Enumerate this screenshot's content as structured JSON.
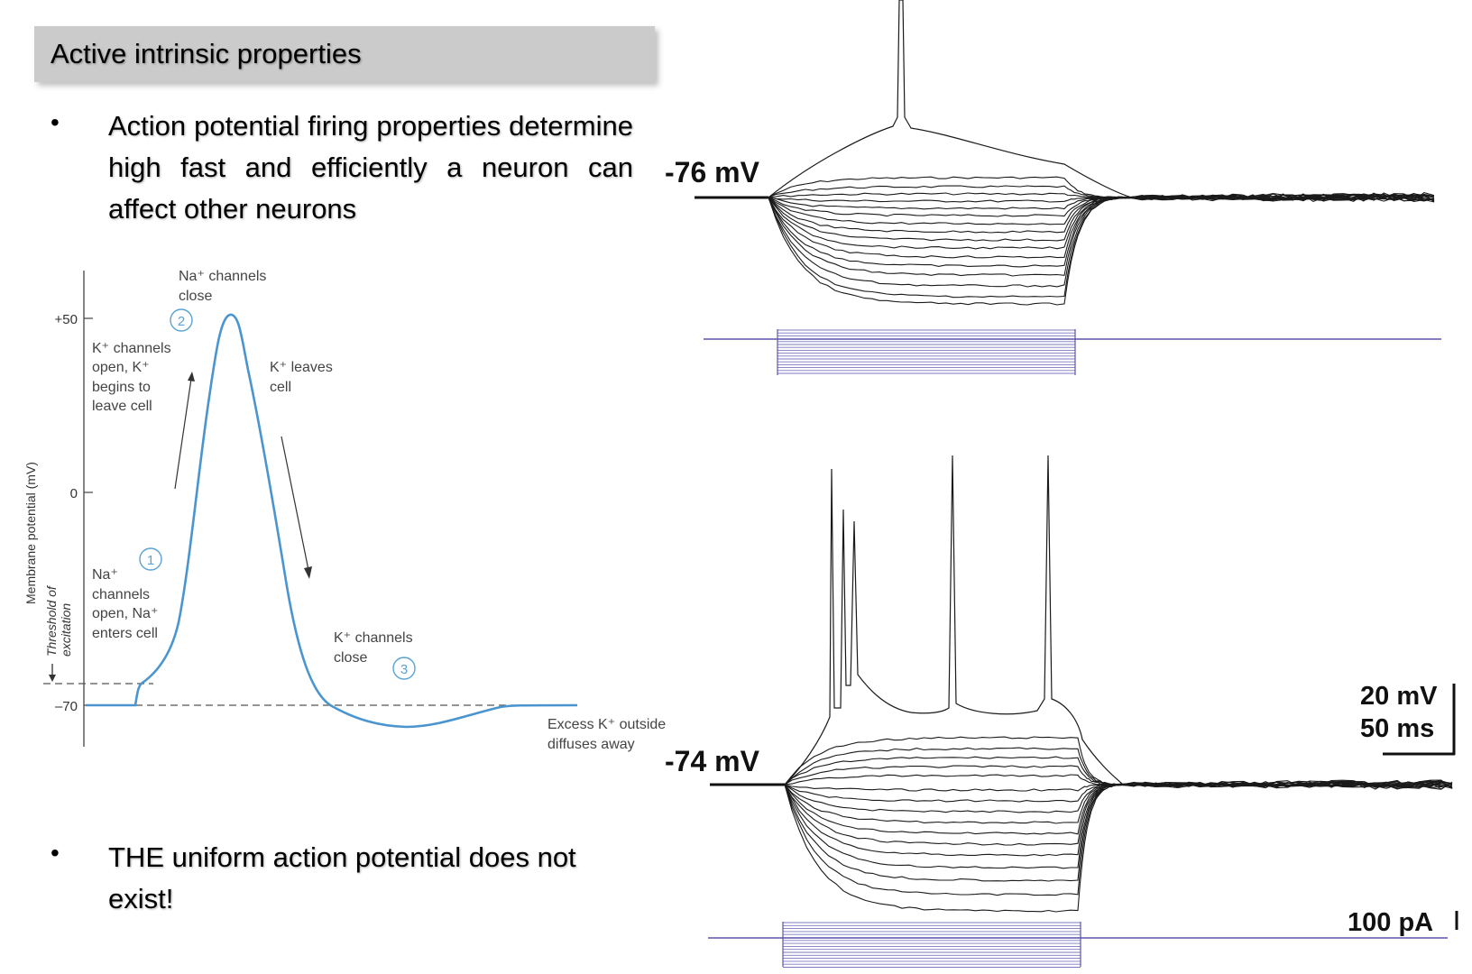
{
  "slide": {
    "title": "Active intrinsic properties",
    "bullets": [
      "Action potential firing properties determine high fast and efficiently a neuron can affect other neurons",
      "THE uniform action potential does not exist!"
    ]
  },
  "ap_diagram": {
    "ylabel": "Membrane potential (mV)",
    "threshold_label_1": "Threshold of",
    "threshold_label_2": "excitation",
    "ticks": [
      "+50",
      "0",
      "–70"
    ],
    "step1": "1",
    "step2": "2",
    "step3": "3",
    "ann_na_close_1": "Na⁺ channels",
    "ann_na_close_2": "close",
    "ann_k_open_1": "K⁺ channels",
    "ann_k_open_2": "open, K⁺",
    "ann_k_open_3": "begins to",
    "ann_k_open_4": "leave cell",
    "ann_k_leaves_1": "K⁺ leaves",
    "ann_k_leaves_2": "cell",
    "ann_na_open_1": "Na⁺",
    "ann_na_open_2": "channels",
    "ann_na_open_3": "open, Na⁺",
    "ann_na_open_4": "enters cell",
    "ann_k_close_1": "K⁺ channels",
    "ann_k_close_2": "close",
    "ann_excess_1": "Excess K⁺ outside",
    "ann_excess_2": "diffuses away"
  },
  "recordings": {
    "top_vm": "-76 mV",
    "bottom_vm": "-74 mV",
    "scale_mv": "20 mV",
    "scale_ms": "50 ms",
    "scale_pa": "100 pA"
  },
  "colors": {
    "ap_trace": "#4a95cf",
    "current_trace": "#5b55a8",
    "title_bg": "#cbcbcb"
  }
}
